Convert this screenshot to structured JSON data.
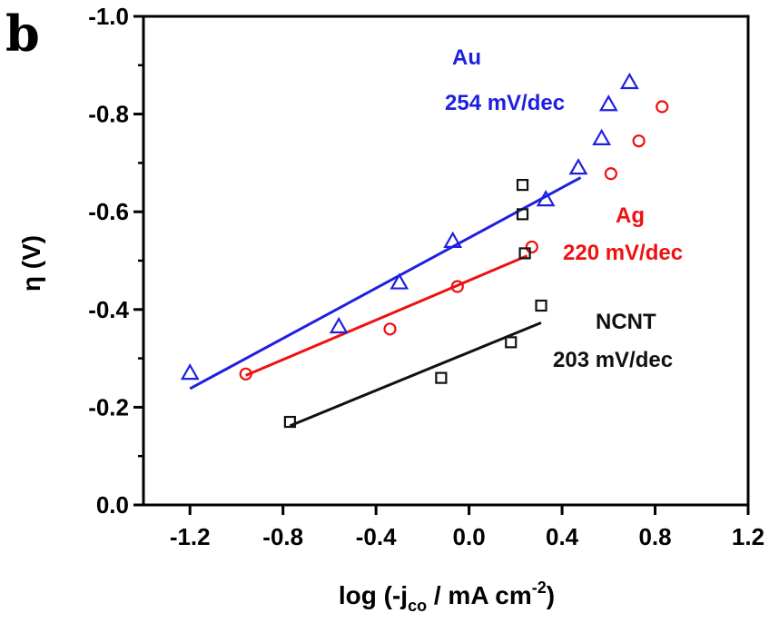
{
  "chart_data": {
    "type": "scatter",
    "panel_label": "b",
    "xlabel": {
      "prefix": "log (-j",
      "sub": "co",
      "mid": " / mA cm",
      "sup": "-2",
      "suffix": ")"
    },
    "ylabel": "η (V)",
    "xlim": [
      -1.4,
      1.2
    ],
    "ylim": [
      0.0,
      -1.0
    ],
    "xticks": [
      "-1.2",
      "-0.8",
      "-0.4",
      "0.0",
      "0.4",
      "0.8",
      "1.2"
    ],
    "yticks": [
      "-1.0",
      "-0.8",
      "-0.6",
      "-0.4",
      "-0.2",
      "0.0"
    ],
    "grid": false,
    "series": [
      {
        "name": "Au",
        "color": "#1f1fe0",
        "marker": "triangle",
        "slope_label": "254 mV/dec",
        "points": [
          [
            -1.2,
            -0.27
          ],
          [
            -0.56,
            -0.365
          ],
          [
            -0.3,
            -0.455
          ],
          [
            -0.07,
            -0.54
          ],
          [
            0.33,
            -0.625
          ],
          [
            0.47,
            -0.69
          ],
          [
            0.57,
            -0.75
          ],
          [
            0.6,
            -0.82
          ],
          [
            0.69,
            -0.865
          ]
        ],
        "fit": [
          [
            -1.2,
            -0.238
          ],
          [
            0.48,
            -0.67
          ]
        ]
      },
      {
        "name": "Ag",
        "color": "#ee1111",
        "marker": "circle",
        "slope_label": "220 mV/dec",
        "points": [
          [
            -0.96,
            -0.268
          ],
          [
            -0.34,
            -0.36
          ],
          [
            -0.05,
            -0.447
          ],
          [
            0.27,
            -0.528
          ],
          [
            0.61,
            -0.678
          ],
          [
            0.73,
            -0.745
          ],
          [
            0.83,
            -0.815
          ]
        ],
        "fit": [
          [
            -0.96,
            -0.265
          ],
          [
            0.25,
            -0.51
          ]
        ]
      },
      {
        "name": "NCNT",
        "color": "#111111",
        "marker": "square",
        "slope_label": "203 mV/dec",
        "points": [
          [
            -0.77,
            -0.17
          ],
          [
            -0.12,
            -0.26
          ],
          [
            0.18,
            -0.333
          ],
          [
            0.31,
            -0.408
          ],
          [
            0.24,
            -0.515
          ],
          [
            0.23,
            -0.595
          ],
          [
            0.23,
            -0.655
          ]
        ],
        "fit": [
          [
            -0.77,
            -0.162
          ],
          [
            0.31,
            -0.373
          ]
        ]
      }
    ]
  }
}
